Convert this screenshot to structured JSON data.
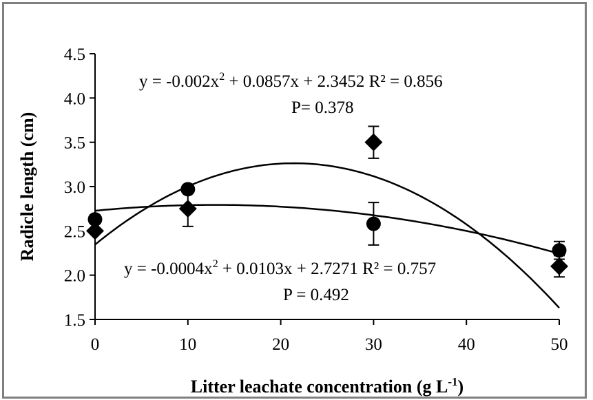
{
  "chart_data": {
    "type": "scatter",
    "title": "",
    "xlabel": "Litter leachate concentration (g L",
    "xlabel_sup": "-1",
    "xlabel_end": ")",
    "ylabel": "Radicle length (cm)",
    "xlim": [
      0,
      50
    ],
    "ylim": [
      1.5,
      4.5
    ],
    "xticks": [
      "0",
      "10",
      "20",
      "30",
      "40",
      "50"
    ],
    "yticks": [
      "1.5",
      "2.0",
      "2.5",
      "3.0",
      "3.5",
      "4.0",
      "4.5"
    ],
    "grid": false,
    "legend": "none",
    "series": [
      {
        "marker": "diamond",
        "x": [
          0,
          10,
          30,
          50
        ],
        "y": [
          2.5,
          2.75,
          3.5,
          2.1
        ],
        "err": [
          0.0,
          0.2,
          0.18,
          0.12
        ],
        "fit": {
          "a": -0.002,
          "b": 0.0857,
          "c": 2.3452
        },
        "equation": {
          "line1_pre": "y = -0.002x",
          "line1_sup": "2",
          "line1_post": " + 0.0857x + 2.3452 R² = 0.856",
          "line2": "P= 0.378"
        }
      },
      {
        "marker": "circle",
        "x": [
          0,
          10,
          30,
          50
        ],
        "y": [
          2.63,
          2.97,
          2.58,
          2.28
        ],
        "err": [
          0.0,
          0.0,
          0.24,
          0.1
        ],
        "fit": {
          "a": -0.0004,
          "b": 0.0103,
          "c": 2.7271
        },
        "equation": {
          "line1_pre": "y = -0.0004x",
          "line1_sup": "2",
          "line1_post": " + 0.0103x + 2.7271 R² = 0.757",
          "line2": "P = 0.492"
        }
      }
    ]
  }
}
